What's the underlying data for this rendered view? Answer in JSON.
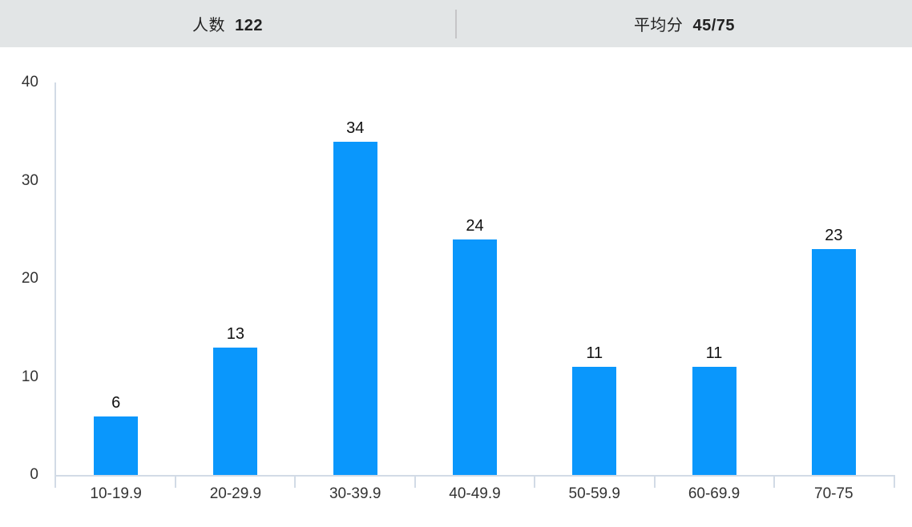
{
  "header": {
    "stats": [
      {
        "label": "人数",
        "value": "122"
      },
      {
        "label": "平均分",
        "value": "45/75"
      }
    ]
  },
  "chart_data": {
    "type": "bar",
    "title": "",
    "xlabel": "",
    "ylabel": "",
    "categories": [
      "10-19.9",
      "20-29.9",
      "30-39.9",
      "40-49.9",
      "50-59.9",
      "60-69.9",
      "70-75"
    ],
    "values": [
      6,
      13,
      34,
      24,
      11,
      11,
      23
    ],
    "value_labels": [
      "6",
      "13",
      "34",
      "24",
      "11",
      "11",
      "23"
    ],
    "ylim": [
      0,
      40
    ],
    "yticks": [
      0,
      10,
      20,
      30,
      40
    ],
    "grid": false,
    "legend_position": "none",
    "show_value_labels": true
  },
  "colors": {
    "bar": "#0a97fc",
    "header_bg": "#e2e5e6",
    "header_text": "#222222",
    "header_divider": "#c5c5c7",
    "axis_line": "#d2dbe6",
    "tick_label": "#333333",
    "value_label": "#111111"
  }
}
